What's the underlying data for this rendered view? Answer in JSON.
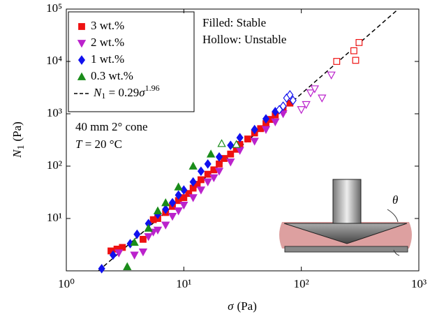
{
  "chart_data": {
    "type": "scatter",
    "x_label": {
      "symbol": "σ",
      "unit": "(Pa)"
    },
    "y_label": {
      "symbol": "N",
      "subscript": "1",
      "unit": "(Pa)"
    },
    "log_x": true,
    "log_y": true,
    "xlim": [
      1,
      1000
    ],
    "ylim": [
      1,
      100000
    ],
    "xticks": [
      {
        "value": 1,
        "label": "10⁰"
      },
      {
        "value": 10,
        "label": "10¹"
      },
      {
        "value": 100,
        "label": "10²"
      },
      {
        "value": 1000,
        "label": "10³"
      }
    ],
    "yticks": [
      {
        "value": 10,
        "label": "10¹"
      },
      {
        "value": 100,
        "label": "10²"
      },
      {
        "value": 1000,
        "label": "10³"
      },
      {
        "value": 10000,
        "label": "10⁴"
      },
      {
        "value": 100000,
        "label": "10⁵"
      }
    ],
    "legend": "upper left",
    "series": [
      {
        "name": "3 wt.%",
        "color": "#ee1111",
        "marker": "square",
        "x": [
          2.4,
          2.7,
          3.0,
          4.5,
          5.5,
          6,
          7,
          8,
          9,
          10,
          11,
          12,
          13,
          14,
          16,
          18,
          20,
          22,
          25,
          28,
          30,
          35,
          40,
          45,
          50,
          55,
          60,
          70,
          80,
          200,
          280,
          290,
          310
        ],
        "values": [
          2.4,
          2.6,
          2.8,
          4.0,
          9.5,
          10,
          13,
          17,
          22,
          25,
          30,
          38,
          45,
          55,
          70,
          85,
          110,
          140,
          170,
          210,
          260,
          330,
          430,
          520,
          650,
          780,
          950,
          1200,
          1600,
          10000,
          16000,
          10500,
          23000
        ],
        "filled": [
          true,
          true,
          true,
          true,
          true,
          true,
          true,
          true,
          true,
          true,
          true,
          true,
          true,
          true,
          true,
          true,
          true,
          true,
          true,
          true,
          true,
          true,
          true,
          true,
          true,
          true,
          true,
          true,
          true,
          false,
          false,
          false,
          false
        ]
      },
      {
        "name": "2 wt.%",
        "color": "#bb22cc",
        "marker": "triangle-down",
        "x": [
          2.8,
          3.8,
          4.5,
          5,
          5.5,
          6,
          7,
          8,
          9,
          10,
          12,
          14,
          16,
          18,
          20,
          25,
          30,
          40,
          50,
          60,
          70,
          100,
          110,
          120,
          130,
          150,
          180
        ],
        "values": [
          2.2,
          2.0,
          2.3,
          4.5,
          5.5,
          6,
          7.5,
          11,
          14,
          18,
          25,
          35,
          50,
          60,
          80,
          120,
          200,
          300,
          500,
          700,
          1000,
          1200,
          1500,
          2500,
          3000,
          2000,
          5500
        ],
        "filled": [
          true,
          true,
          true,
          true,
          true,
          true,
          true,
          true,
          true,
          true,
          true,
          true,
          true,
          true,
          true,
          true,
          true,
          true,
          true,
          true,
          true,
          false,
          false,
          false,
          false,
          false,
          false
        ]
      },
      {
        "name": "1 wt.%",
        "color": "#1111ee",
        "marker": "diamond",
        "x": [
          2.0,
          2.5,
          3.5,
          4,
          5,
          6,
          7,
          8,
          9,
          10,
          12,
          14,
          16,
          20,
          25,
          30,
          40,
          50,
          60,
          65,
          70,
          75,
          80,
          85
        ],
        "values": [
          1.1,
          2.0,
          3.3,
          5,
          8,
          12,
          15,
          20,
          28,
          35,
          50,
          80,
          110,
          150,
          250,
          350,
          500,
          800,
          1100,
          1200,
          1400,
          2000,
          2300,
          1800
        ],
        "filled": [
          true,
          true,
          true,
          true,
          true,
          true,
          true,
          true,
          true,
          true,
          true,
          true,
          true,
          true,
          true,
          true,
          true,
          true,
          true,
          false,
          false,
          false,
          false,
          false
        ]
      },
      {
        "name": "0.3 wt.%",
        "color": "#1a8c1a",
        "marker": "triangle-up",
        "x": [
          3.3,
          3.8,
          5,
          6,
          7,
          9,
          12,
          17,
          21,
          28
        ],
        "values": [
          1.2,
          3.5,
          6.5,
          14,
          20,
          40,
          100,
          170,
          270,
          260
        ],
        "filled": [
          true,
          true,
          true,
          true,
          true,
          true,
          true,
          true,
          false,
          false
        ]
      }
    ],
    "fit": {
      "lhs": "N",
      "lhs_sub": "1",
      "eq": " = ",
      "coefficient": 0.29,
      "variable": "σ",
      "exponent": 1.96,
      "color": "#000000"
    },
    "annotations": {
      "filled": "Filled: Stable",
      "hollow": "Hollow: Unstable",
      "geometry": "40 mm 2° cone",
      "temp_symbol": "T",
      "temp_rest": " = 20 °C"
    },
    "inset": {
      "angle_label": "θ"
    }
  }
}
